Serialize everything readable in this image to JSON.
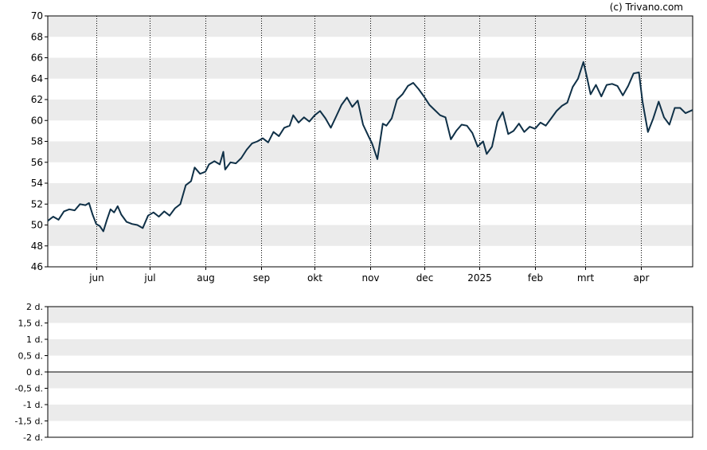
{
  "credit": "(c) Trivano.com",
  "colors": {
    "line": "#0f3047",
    "band": "#ebebeb",
    "axis": "#000000"
  },
  "chart_data": [
    {
      "type": "line",
      "title": "",
      "xlabel": "",
      "ylabel": "",
      "ylim": [
        46,
        70
      ],
      "y_ticks": [
        "46",
        "48",
        "50",
        "52",
        "54",
        "56",
        "58",
        "60",
        "62",
        "64",
        "66",
        "68",
        "70"
      ],
      "grid": "alternating horizontal bands, dotted vertical lines at month ticks",
      "x_axis": {
        "start": "2024-05-05",
        "end": "2025-04-30",
        "ticks": [
          {
            "label": "jun",
            "date": "2024-06-01"
          },
          {
            "label": "jul",
            "date": "2024-07-01"
          },
          {
            "label": "aug",
            "date": "2024-08-01"
          },
          {
            "label": "sep",
            "date": "2024-09-01"
          },
          {
            "label": "okt",
            "date": "2024-10-01"
          },
          {
            "label": "nov",
            "date": "2024-11-01"
          },
          {
            "label": "dec",
            "date": "2024-12-01"
          },
          {
            "label": "2025",
            "date": "2025-01-01"
          },
          {
            "label": "feb",
            "date": "2025-02-01"
          },
          {
            "label": "mrt",
            "date": "2025-03-01"
          },
          {
            "label": "apr",
            "date": "2025-04-01"
          }
        ]
      },
      "series": [
        {
          "values": [
            [
              "2024-05-05",
              50.4
            ],
            [
              "2024-05-08",
              50.8
            ],
            [
              "2024-05-11",
              50.5
            ],
            [
              "2024-05-14",
              51.3
            ],
            [
              "2024-05-17",
              51.5
            ],
            [
              "2024-05-20",
              51.4
            ],
            [
              "2024-05-23",
              52.0
            ],
            [
              "2024-05-26",
              51.9
            ],
            [
              "2024-05-28",
              52.1
            ],
            [
              "2024-05-30",
              51.0
            ],
            [
              "2024-06-01",
              50.1
            ],
            [
              "2024-06-03",
              49.9
            ],
            [
              "2024-06-05",
              49.4
            ],
            [
              "2024-06-07",
              50.5
            ],
            [
              "2024-06-09",
              51.5
            ],
            [
              "2024-06-11",
              51.2
            ],
            [
              "2024-06-13",
              51.8
            ],
            [
              "2024-06-15",
              51.0
            ],
            [
              "2024-06-18",
              50.3
            ],
            [
              "2024-06-21",
              50.1
            ],
            [
              "2024-06-24",
              50.0
            ],
            [
              "2024-06-27",
              49.7
            ],
            [
              "2024-06-30",
              50.9
            ],
            [
              "2024-07-03",
              51.2
            ],
            [
              "2024-07-06",
              50.8
            ],
            [
              "2024-07-09",
              51.3
            ],
            [
              "2024-07-12",
              50.9
            ],
            [
              "2024-07-15",
              51.6
            ],
            [
              "2024-07-18",
              52.0
            ],
            [
              "2024-07-21",
              53.8
            ],
            [
              "2024-07-24",
              54.2
            ],
            [
              "2024-07-26",
              55.5
            ],
            [
              "2024-07-29",
              54.9
            ],
            [
              "2024-08-01",
              55.1
            ],
            [
              "2024-08-03",
              55.8
            ],
            [
              "2024-08-06",
              56.1
            ],
            [
              "2024-08-09",
              55.8
            ],
            [
              "2024-08-11",
              57.0
            ],
            [
              "2024-08-12",
              55.3
            ],
            [
              "2024-08-15",
              56.0
            ],
            [
              "2024-08-18",
              55.9
            ],
            [
              "2024-08-21",
              56.4
            ],
            [
              "2024-08-24",
              57.2
            ],
            [
              "2024-08-27",
              57.8
            ],
            [
              "2024-08-30",
              58.0
            ],
            [
              "2024-09-02",
              58.3
            ],
            [
              "2024-09-05",
              57.9
            ],
            [
              "2024-09-08",
              58.9
            ],
            [
              "2024-09-11",
              58.5
            ],
            [
              "2024-09-14",
              59.3
            ],
            [
              "2024-09-17",
              59.5
            ],
            [
              "2024-09-19",
              60.5
            ],
            [
              "2024-09-22",
              59.8
            ],
            [
              "2024-09-25",
              60.3
            ],
            [
              "2024-09-28",
              59.9
            ],
            [
              "2024-10-01",
              60.5
            ],
            [
              "2024-10-04",
              60.9
            ],
            [
              "2024-10-07",
              60.2
            ],
            [
              "2024-10-10",
              59.3
            ],
            [
              "2024-10-13",
              60.4
            ],
            [
              "2024-10-16",
              61.5
            ],
            [
              "2024-10-19",
              62.2
            ],
            [
              "2024-10-22",
              61.3
            ],
            [
              "2024-10-25",
              61.9
            ],
            [
              "2024-10-28",
              59.6
            ],
            [
              "2024-10-31",
              58.5
            ],
            [
              "2024-11-02",
              57.8
            ],
            [
              "2024-11-05",
              56.3
            ],
            [
              "2024-11-08",
              59.7
            ],
            [
              "2024-11-10",
              59.5
            ],
            [
              "2024-11-13",
              60.2
            ],
            [
              "2024-11-16",
              62.0
            ],
            [
              "2024-11-19",
              62.5
            ],
            [
              "2024-11-22",
              63.3
            ],
            [
              "2024-11-25",
              63.6
            ],
            [
              "2024-11-28",
              63.0
            ],
            [
              "2024-12-01",
              62.3
            ],
            [
              "2024-12-04",
              61.5
            ],
            [
              "2024-12-07",
              61.0
            ],
            [
              "2024-12-10",
              60.5
            ],
            [
              "2024-12-13",
              60.3
            ],
            [
              "2024-12-16",
              58.2
            ],
            [
              "2024-12-19",
              59.0
            ],
            [
              "2024-12-22",
              59.6
            ],
            [
              "2024-12-25",
              59.5
            ],
            [
              "2024-12-28",
              58.8
            ],
            [
              "2024-12-31",
              57.5
            ],
            [
              "2025-01-03",
              58.0
            ],
            [
              "2025-01-05",
              56.8
            ],
            [
              "2025-01-08",
              57.5
            ],
            [
              "2025-01-11",
              59.9
            ],
            [
              "2025-01-14",
              60.8
            ],
            [
              "2025-01-17",
              58.7
            ],
            [
              "2025-01-20",
              59.0
            ],
            [
              "2025-01-23",
              59.7
            ],
            [
              "2025-01-26",
              58.9
            ],
            [
              "2025-01-29",
              59.4
            ],
            [
              "2025-02-01",
              59.2
            ],
            [
              "2025-02-04",
              59.8
            ],
            [
              "2025-02-07",
              59.5
            ],
            [
              "2025-02-10",
              60.2
            ],
            [
              "2025-02-13",
              60.9
            ],
            [
              "2025-02-16",
              61.4
            ],
            [
              "2025-02-19",
              61.7
            ],
            [
              "2025-02-22",
              63.2
            ],
            [
              "2025-02-25",
              64.0
            ],
            [
              "2025-02-28",
              65.6
            ],
            [
              "2025-03-02",
              64.1
            ],
            [
              "2025-03-04",
              62.5
            ],
            [
              "2025-03-07",
              63.4
            ],
            [
              "2025-03-10",
              62.3
            ],
            [
              "2025-03-13",
              63.4
            ],
            [
              "2025-03-16",
              63.5
            ],
            [
              "2025-03-19",
              63.3
            ],
            [
              "2025-03-22",
              62.4
            ],
            [
              "2025-03-25",
              63.3
            ],
            [
              "2025-03-28",
              64.5
            ],
            [
              "2025-03-31",
              64.6
            ],
            [
              "2025-04-02",
              61.8
            ],
            [
              "2025-04-05",
              58.9
            ],
            [
              "2025-04-08",
              60.2
            ],
            [
              "2025-04-11",
              61.8
            ],
            [
              "2025-04-14",
              60.3
            ],
            [
              "2025-04-17",
              59.6
            ],
            [
              "2025-04-20",
              61.2
            ],
            [
              "2025-04-23",
              61.2
            ],
            [
              "2025-04-26",
              60.7
            ],
            [
              "2025-04-30",
              61.0
            ]
          ]
        }
      ]
    },
    {
      "type": "bar",
      "title": "",
      "xlabel": "",
      "ylabel": "",
      "ylim": [
        -2,
        2
      ],
      "y_ticks": [
        "2 d.",
        "1,5 d.",
        "1 d.",
        "0,5 d.",
        "0 d.",
        "-0,5 d.",
        "-1 d.",
        "-1,5 d.",
        "-2 d."
      ],
      "grid": "alternating horizontal bands, zero line",
      "series": []
    }
  ]
}
